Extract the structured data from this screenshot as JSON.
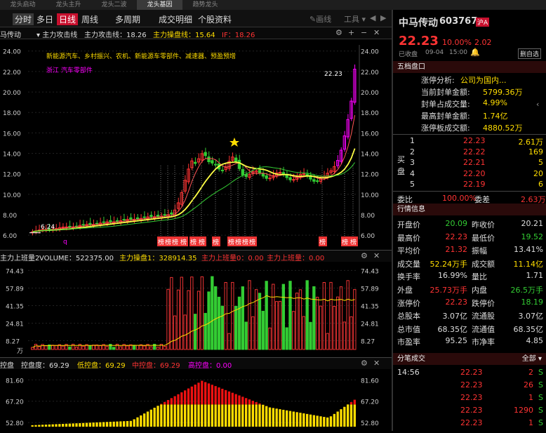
{
  "top_tabs": [
    "龙头启动",
    "龙头主升",
    "龙头二波",
    "龙头基因",
    "趋势龙头"
  ],
  "active_top_tab": 3,
  "toolbar": {
    "fenshi": "分时",
    "duori": "多日",
    "rixian": "日线",
    "zhouxian": "周线",
    "duozhouqi": "多周期",
    "chengjiao": "成交明细",
    "gegu": "个股资料",
    "huaxian": "画线",
    "gongju": "工具"
  },
  "infobar": {
    "name": "马传动",
    "title": "主力攻击线",
    "val1": "主力攻击线：18.26",
    "val2": "主力操盘线：15.64",
    "val3": "IF：18.26"
  },
  "chart": {
    "note1": "新能源汽车、乡村振兴、农机、新能源车零部件、减速器、预盈预增",
    "note2": "浙江 汽车零部件",
    "high_label": "22.23",
    "low_label": "6.24",
    "q_mark": "q",
    "tag_label": "榜",
    "y_ticks": [
      "24.00",
      "22.00",
      "20.00",
      "18.00",
      "16.00",
      "14.00",
      "12.00",
      "10.00",
      "8.00",
      "6.00"
    ]
  },
  "volbar": {
    "name": "主力上班量2",
    "volume": "VOLUME：522375.00",
    "v1": "主力操盘1：328914.35",
    "v2": "主力上班量0：0.00",
    "v3": "主力上班量：0.00"
  },
  "vol_ticks": [
    "74.43",
    "57.89",
    "41.35",
    "24.81",
    "8.27"
  ],
  "vol_unit": "万",
  "ctlbar": {
    "name": "控盘",
    "v1": "控盘度：69.29",
    "v2": "低控盘：69.29",
    "v3": "中控盘：69.29",
    "v4": "高控盘：0.00"
  },
  "ctl_ticks": [
    "81.60",
    "67.20",
    "52.80"
  ],
  "stock": {
    "name": "中马传动",
    "code": "603767",
    "exchange": "沪A",
    "price": "22.23",
    "pct": "10.00%",
    "chg": "2.02",
    "status": "已收盘",
    "date": "09-04",
    "time": "15:00",
    "delete_btn": "删自选"
  },
  "wudang": {
    "title": "五档盘口",
    "zt_label": "涨停分析:",
    "zt_value": "公司为国内...",
    "rows": [
      {
        "l": "当前封单金额:",
        "v": "5799.36万"
      },
      {
        "l": "封单占成交量:",
        "v": "4.99%"
      },
      {
        "l": "最高封单金额:",
        "v": "1.74亿"
      },
      {
        "l": "涨停板成交额:",
        "v": "4880.52万"
      }
    ],
    "mai": "买",
    "pan": "盘",
    "buy": [
      {
        "n": "1",
        "p": "22.23",
        "v": "2.61万"
      },
      {
        "n": "2",
        "p": "22.22",
        "v": "169"
      },
      {
        "n": "3",
        "p": "22.21",
        "v": "5"
      },
      {
        "n": "4",
        "p": "22.20",
        "v": "20"
      },
      {
        "n": "5",
        "p": "22.19",
        "v": "6"
      }
    ],
    "weibi_l": "委比",
    "weibi": "100.00%",
    "weicha_l": "委差",
    "weicha": "2.63万"
  },
  "hangqing": {
    "title": "行情信息",
    "rows": [
      {
        "a": "开盘价",
        "av": "20.09",
        "ac": "g",
        "b": "昨收价",
        "bv": "20.21",
        "bc": "w"
      },
      {
        "a": "最高价",
        "av": "22.23",
        "ac": "r",
        "b": "最低价",
        "bv": "19.52",
        "bc": "g"
      },
      {
        "a": "平均价",
        "av": "21.32",
        "ac": "r",
        "b": "振幅",
        "bv": "13.41%",
        "bc": "w"
      },
      {
        "a": "成交量",
        "av": "52.24万手",
        "ac": "y",
        "b": "成交额",
        "bv": "11.14亿",
        "bc": "y"
      },
      {
        "a": "换手率",
        "av": "16.99%",
        "ac": "w",
        "b": "量比",
        "bv": "1.71",
        "bc": "w"
      },
      {
        "a": "外盘",
        "av": "25.73万手",
        "ac": "r",
        "b": "内盘",
        "bv": "26.5万手",
        "bc": "g"
      },
      {
        "a": "涨停价",
        "av": "22.23",
        "ac": "r",
        "b": "跌停价",
        "bv": "18.19",
        "bc": "g"
      },
      {
        "a": "总股本",
        "av": "3.07亿",
        "ac": "w",
        "b": "流通股",
        "bv": "3.07亿",
        "bc": "w"
      },
      {
        "a": "总市值",
        "av": "68.35亿",
        "ac": "w",
        "b": "流通值",
        "bv": "68.35亿",
        "bc": "w"
      },
      {
        "a": "市盈率",
        "av": "95.25",
        "ac": "w",
        "b": "市净率",
        "bv": "4.85",
        "bc": "w"
      }
    ]
  },
  "fenbi": {
    "title": "分笔成交",
    "all": "全部",
    "rows": [
      {
        "t": "14:56",
        "p": "22.23",
        "v": "2",
        "d": "S"
      },
      {
        "t": "",
        "p": "22.23",
        "v": "26",
        "d": "S"
      },
      {
        "t": "",
        "p": "22.23",
        "v": "1",
        "d": "S"
      },
      {
        "t": "",
        "p": "22.23",
        "v": "1290",
        "d": "S"
      },
      {
        "t": "",
        "p": "22.23",
        "v": "1",
        "d": "S"
      }
    ]
  },
  "chart_data": {
    "type": "candlestick",
    "price_ylim": [
      5.6,
      24.6
    ],
    "last_close": 22.23,
    "period_low": 6.24,
    "vol_ylim": [
      0,
      80
    ],
    "ctl_ylim": [
      50,
      86
    ],
    "ma_lines": [
      "主力攻击线",
      "主力操盘线"
    ]
  }
}
